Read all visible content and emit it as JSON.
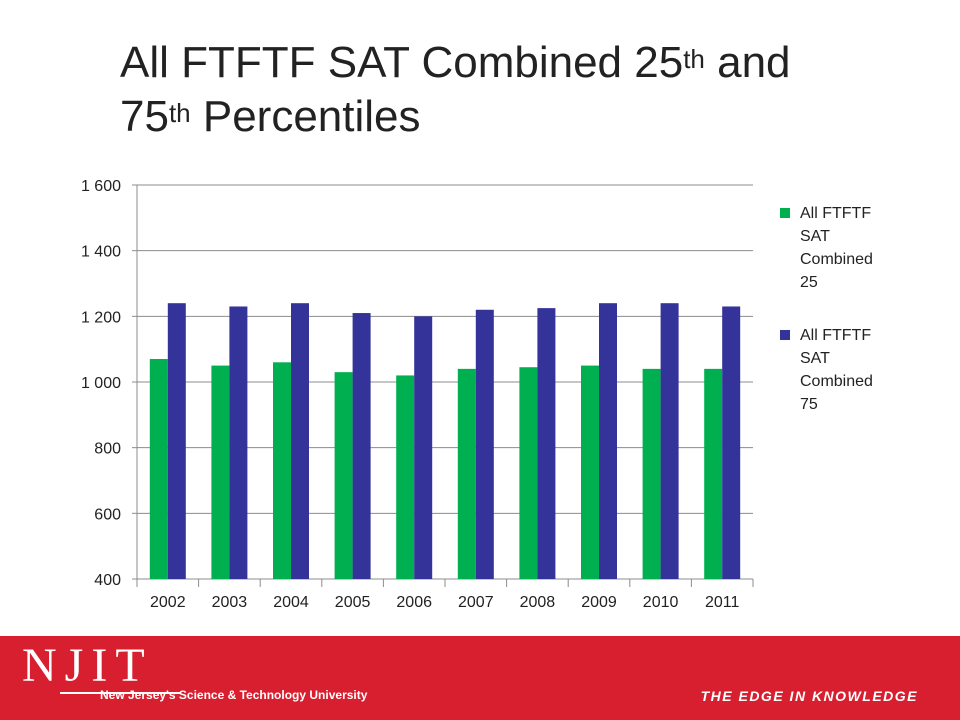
{
  "title": {
    "part1": "All FTFTF SAT Combined 25",
    "sup1": "th",
    "part2": " and",
    "part3": "75",
    "sup2": "th",
    "part4": " Percentiles"
  },
  "chart_data": {
    "type": "bar",
    "categories": [
      "2002",
      "2003",
      "2004",
      "2005",
      "2006",
      "2007",
      "2008",
      "2009",
      "2010",
      "2011"
    ],
    "series": [
      {
        "name": "All FTFTF SAT Combined 25",
        "color": "#00b050",
        "values": [
          1070,
          1050,
          1060,
          1030,
          1020,
          1040,
          1045,
          1050,
          1040,
          1040
        ]
      },
      {
        "name": "All FTFTF SAT Combined 75",
        "color": "#333399",
        "values": [
          1240,
          1230,
          1240,
          1210,
          1200,
          1220,
          1225,
          1240,
          1240,
          1230
        ]
      }
    ],
    "ylim": [
      400,
      1600
    ],
    "yticks": [
      400,
      600,
      800,
      1000,
      1200,
      1400,
      1600
    ],
    "ytick_labels": [
      "400",
      "600",
      "800",
      "1 000",
      "1 200",
      "1 400",
      "1 600"
    ],
    "grid": true,
    "legend_position": "right",
    "title": "",
    "xlabel": "",
    "ylabel": ""
  },
  "legend": {
    "item1_line1": "All FTFTF",
    "item1_line2": "SAT",
    "item1_line3": "Combined",
    "item1_line4": "25",
    "item2_line1": "All FTFTF",
    "item2_line2": "SAT",
    "item2_line3": "Combined",
    "item2_line4": "75"
  },
  "footer": {
    "logo": "NJIT",
    "university": "New Jersey's Science & Technology University",
    "tagline": "THE EDGE IN KNOWLEDGE",
    "color": "#d71f2f"
  }
}
